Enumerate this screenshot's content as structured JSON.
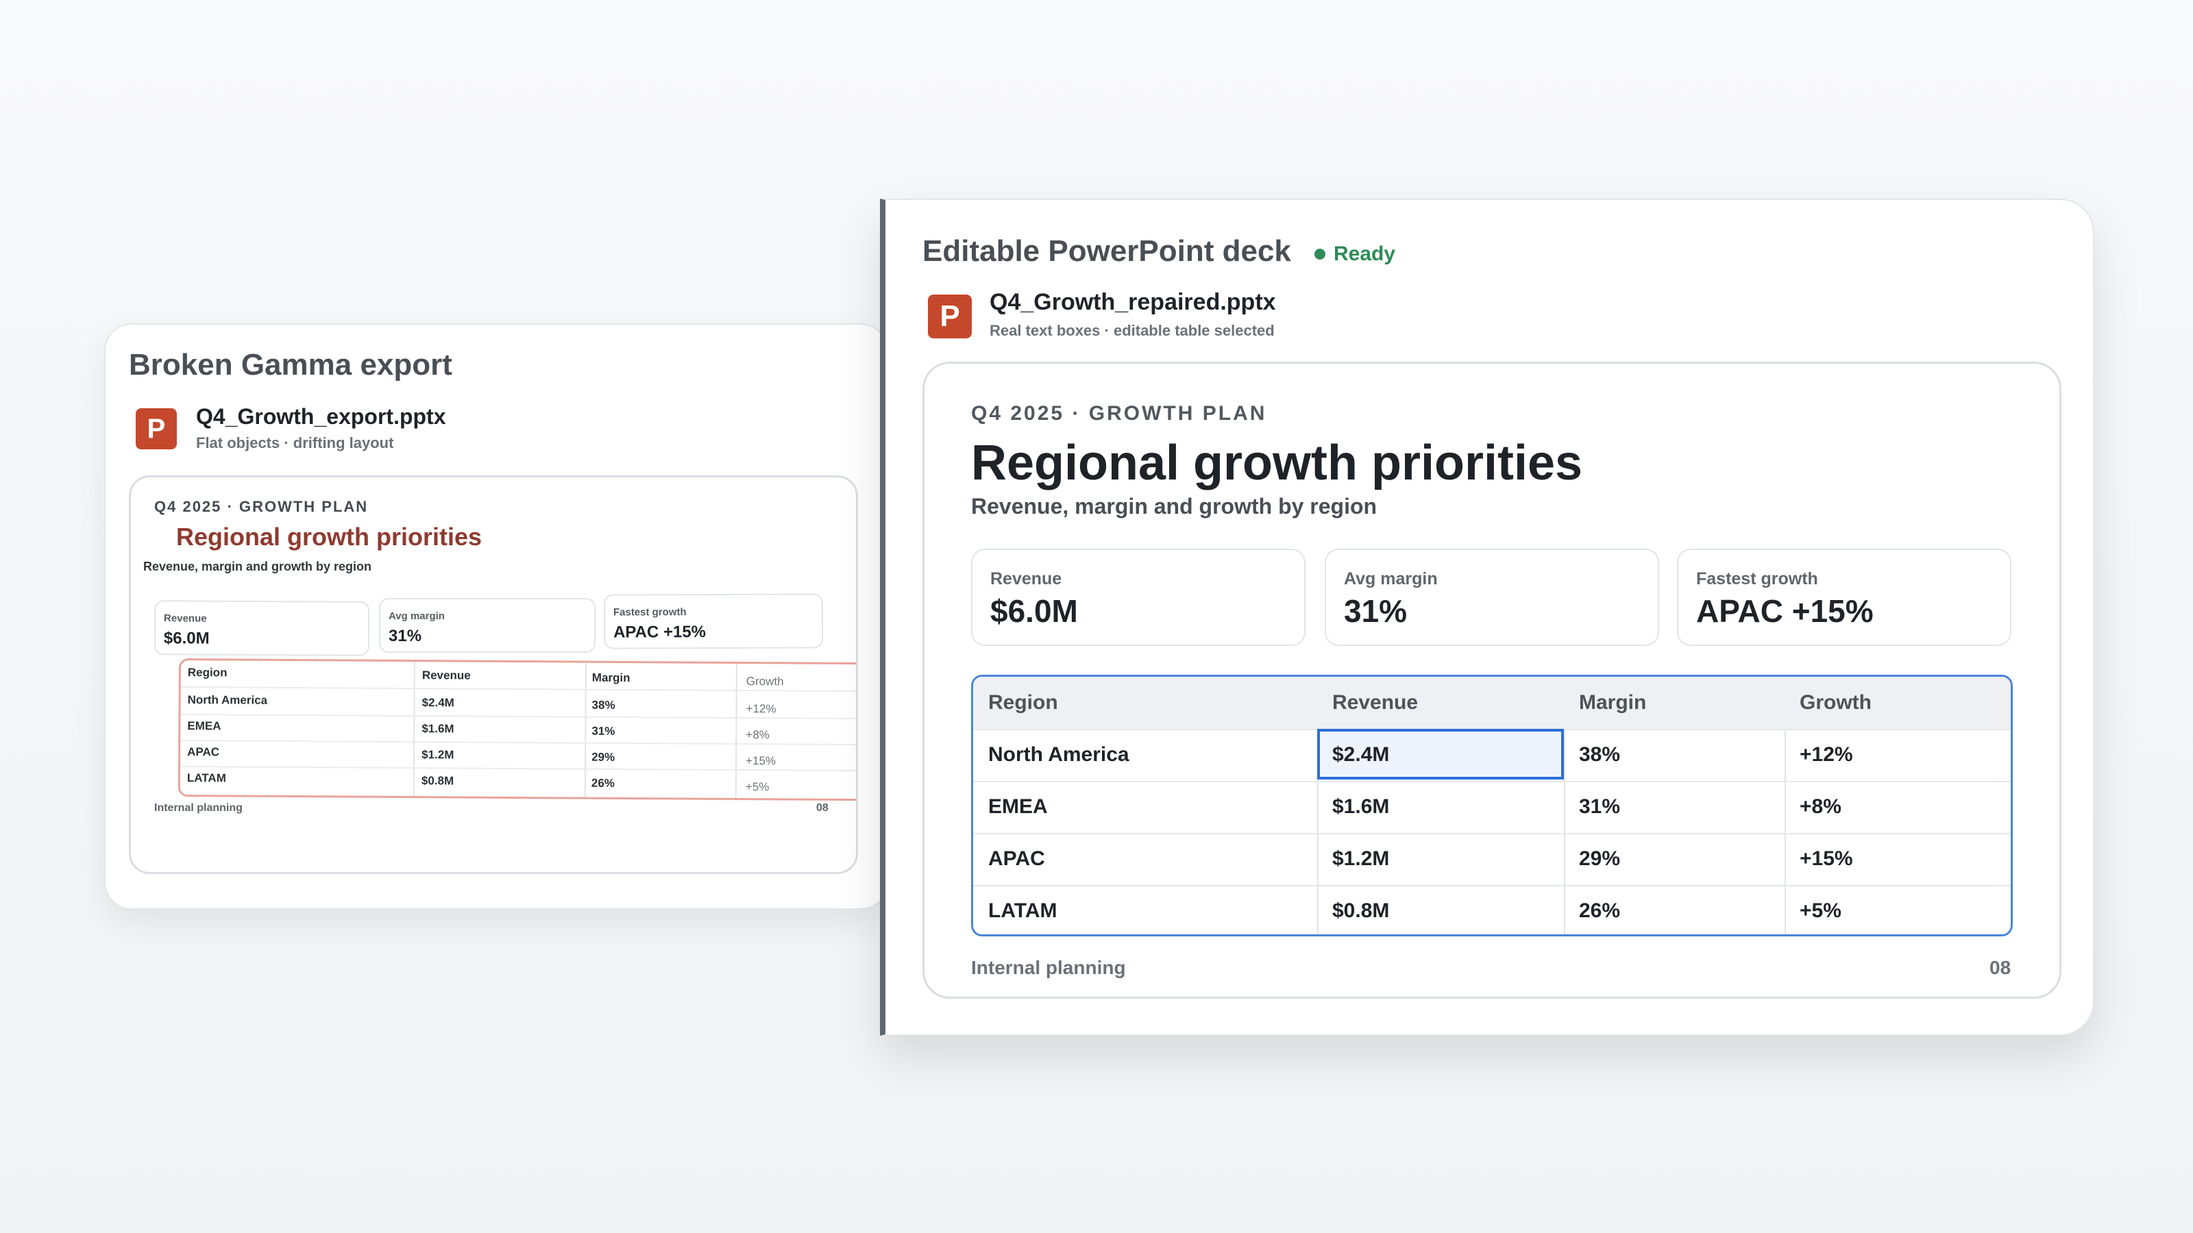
{
  "left_panel": {
    "title": "Broken Gamma export",
    "file_name": "Q4_Growth_export.pptx",
    "file_sub": "Flat objects · drifting layout",
    "icon_letter": "P",
    "slide": {
      "kicker": "Q4 2025 · GROWTH PLAN",
      "title": "Regional growth priorities",
      "subtitle": "Revenue, margin and growth by region",
      "kpis": [
        {
          "label": "Revenue",
          "value": "$6.0M"
        },
        {
          "label": "Avg margin",
          "value": "31%"
        },
        {
          "label": "Fastest growth",
          "value": "APAC +15%"
        }
      ],
      "table": {
        "headers": [
          "Region",
          "Revenue",
          "Margin",
          "Growth"
        ],
        "rows": [
          [
            "North America",
            "$2.4M",
            "38%",
            "+12%"
          ],
          [
            "EMEA",
            "$1.6M",
            "31%",
            "+8%"
          ],
          [
            "APAC",
            "$1.2M",
            "29%",
            "+15%"
          ],
          [
            "LATAM",
            "$0.8M",
            "26%",
            "+5%"
          ]
        ]
      },
      "footer": "Internal planning",
      "page": "08"
    }
  },
  "right_panel": {
    "title": "Editable PowerPoint deck",
    "status": "Ready",
    "file_name": "Q4_Growth_repaired.pptx",
    "file_sub": "Real text boxes · editable table selected",
    "icon_letter": "P",
    "slide": {
      "kicker": "Q4 2025 · GROWTH PLAN",
      "title": "Regional growth priorities",
      "subtitle": "Revenue, margin and growth by region",
      "kpis": [
        {
          "label": "Revenue",
          "value": "$6.0M"
        },
        {
          "label": "Avg margin",
          "value": "31%"
        },
        {
          "label": "Fastest growth",
          "value": "APAC +15%"
        }
      ],
      "table": {
        "headers": [
          "Region",
          "Revenue",
          "Margin",
          "Growth"
        ],
        "rows": [
          [
            "North America",
            "$2.4M",
            "38%",
            "+12%"
          ],
          [
            "EMEA",
            "$1.6M",
            "31%",
            "+8%"
          ],
          [
            "APAC",
            "$1.2M",
            "29%",
            "+15%"
          ],
          [
            "LATAM",
            "$0.8M",
            "26%",
            "+5%"
          ]
        ],
        "selected_cell": "$2.4M"
      },
      "footer": "Internal planning",
      "page": "08"
    }
  },
  "colors": {
    "brand_powerpoint": "#c5482c",
    "status_ready": "#2e8b57",
    "selection": "#2c6fd6",
    "broken_outline": "#e8a49b",
    "broken_title": "#8e3b30"
  }
}
